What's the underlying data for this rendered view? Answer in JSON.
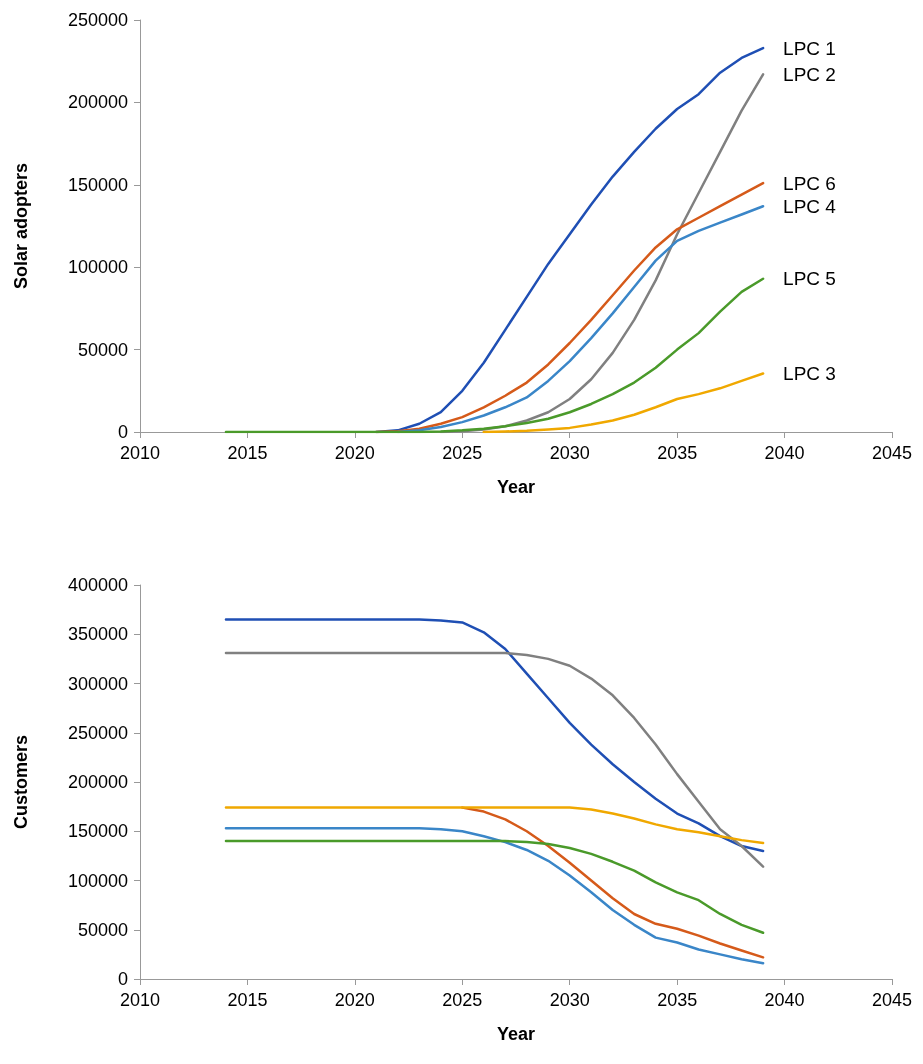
{
  "chart_data": [
    {
      "type": "line",
      "xlabel": "Year",
      "ylabel": "Solar adopters",
      "xlim": [
        2010,
        2045
      ],
      "xticks": [
        2010,
        2015,
        2020,
        2025,
        2030,
        2035,
        2040,
        2045
      ],
      "ylim": [
        0,
        250000
      ],
      "yticks": [
        0,
        50000,
        100000,
        150000,
        200000,
        250000
      ],
      "grid": false,
      "legend": false,
      "marker": "none",
      "line_style": "solid",
      "x": [
        2014,
        2015,
        2016,
        2017,
        2018,
        2019,
        2020,
        2021,
        2022,
        2023,
        2024,
        2025,
        2026,
        2027,
        2028,
        2029,
        2030,
        2031,
        2032,
        2033,
        2034,
        2035,
        2036,
        2037,
        2038,
        2039
      ],
      "series": [
        {
          "name": "LPC 1",
          "color": "#1f4fb4",
          "values": [
            null,
            null,
            null,
            null,
            null,
            null,
            null,
            0,
            1000,
            5000,
            12000,
            25000,
            42000,
            62000,
            82000,
            102000,
            120000,
            138000,
            155000,
            170000,
            184000,
            196000,
            205000,
            218000,
            227000,
            233000
          ]
        },
        {
          "name": "LPC 2",
          "color": "#808080",
          "values": [
            null,
            null,
            null,
            null,
            null,
            null,
            null,
            null,
            null,
            null,
            0,
            500,
            1500,
            3500,
            7000,
            12000,
            20000,
            32000,
            48000,
            68000,
            92000,
            120000,
            145000,
            170000,
            195000,
            217000
          ]
        },
        {
          "name": "LPC 6",
          "color": "#d55a1a",
          "values": [
            null,
            null,
            null,
            null,
            null,
            null,
            null,
            0,
            500,
            2000,
            5000,
            9000,
            15000,
            22000,
            30000,
            41000,
            54000,
            68000,
            83000,
            98000,
            112000,
            123000,
            130000,
            137000,
            144000,
            151000
          ]
        },
        {
          "name": "LPC 4",
          "color": "#3a86c8",
          "values": [
            null,
            null,
            null,
            null,
            null,
            null,
            null,
            null,
            0,
            1000,
            3000,
            6000,
            10000,
            15000,
            21000,
            31000,
            43000,
            57000,
            72000,
            88000,
            104000,
            116000,
            122000,
            127000,
            132000,
            137000
          ]
        },
        {
          "name": "LPC 3",
          "color": "#f0a800",
          "values": [
            null,
            null,
            null,
            null,
            null,
            null,
            null,
            null,
            null,
            null,
            null,
            null,
            0,
            300,
            700,
            1500,
            2500,
            4500,
            7000,
            10500,
            15000,
            20000,
            23000,
            26500,
            31000,
            35500
          ]
        },
        {
          "name": "LPC 5",
          "color": "#4a9a2a",
          "values": [
            0,
            0,
            0,
            0,
            0,
            0,
            0,
            0,
            0,
            0,
            300,
            1000,
            2000,
            3500,
            5500,
            8000,
            12000,
            17000,
            23000,
            30000,
            39000,
            50000,
            60000,
            73000,
            85000,
            93000
          ]
        }
      ]
    },
    {
      "type": "line",
      "xlabel": "Year",
      "ylabel": "Customers",
      "xlim": [
        2010,
        2045
      ],
      "xticks": [
        2010,
        2015,
        2020,
        2025,
        2030,
        2035,
        2040,
        2045
      ],
      "ylim": [
        0,
        400000
      ],
      "yticks": [
        0,
        50000,
        100000,
        150000,
        200000,
        250000,
        300000,
        350000,
        400000
      ],
      "grid": false,
      "legend": false,
      "marker": "none",
      "line_style": "solid",
      "x": [
        2014,
        2015,
        2016,
        2017,
        2018,
        2019,
        2020,
        2021,
        2022,
        2023,
        2024,
        2025,
        2026,
        2027,
        2028,
        2029,
        2030,
        2031,
        2032,
        2033,
        2034,
        2035,
        2036,
        2037,
        2038,
        2039
      ],
      "series": [
        {
          "color": "#1f4fb4",
          "values": [
            365000,
            365000,
            365000,
            365000,
            365000,
            365000,
            365000,
            365000,
            365000,
            365000,
            364000,
            362000,
            352000,
            335000,
            310000,
            285000,
            260000,
            238000,
            218000,
            200000,
            183000,
            168000,
            158000,
            145000,
            135000,
            130000
          ]
        },
        {
          "color": "#808080",
          "values": [
            331000,
            331000,
            331000,
            331000,
            331000,
            331000,
            331000,
            331000,
            331000,
            331000,
            331000,
            331000,
            331000,
            331000,
            329000,
            325000,
            318000,
            305000,
            288000,
            265000,
            238000,
            208000,
            180000,
            152000,
            135000,
            114000
          ]
        },
        {
          "color": "#d55a1a",
          "values": [
            null,
            null,
            null,
            null,
            null,
            null,
            null,
            null,
            null,
            null,
            null,
            174000,
            170000,
            162000,
            150000,
            135000,
            118000,
            100000,
            82000,
            66000,
            56000,
            51000,
            44000,
            36000,
            29000,
            22000
          ]
        },
        {
          "color": "#3a86c8",
          "values": [
            153000,
            153000,
            153000,
            153000,
            153000,
            153000,
            153000,
            153000,
            153000,
            153000,
            152000,
            150000,
            145000,
            139000,
            131000,
            120000,
            105000,
            88000,
            70000,
            55000,
            42000,
            37000,
            30000,
            25000,
            20000,
            16000
          ]
        },
        {
          "color": "#4a9a2a",
          "values": [
            140000,
            140000,
            140000,
            140000,
            140000,
            140000,
            140000,
            140000,
            140000,
            140000,
            140000,
            140000,
            140000,
            140000,
            139000,
            137000,
            133000,
            127000,
            119000,
            110000,
            98000,
            88000,
            80000,
            66000,
            55000,
            47000
          ]
        },
        {
          "color": "#f0a800",
          "values": [
            174000,
            174000,
            174000,
            174000,
            174000,
            174000,
            174000,
            174000,
            174000,
            174000,
            174000,
            174000,
            174000,
            174000,
            174000,
            174000,
            174000,
            172000,
            168000,
            163000,
            157000,
            152000,
            149000,
            145000,
            141000,
            138000
          ]
        }
      ]
    }
  ]
}
